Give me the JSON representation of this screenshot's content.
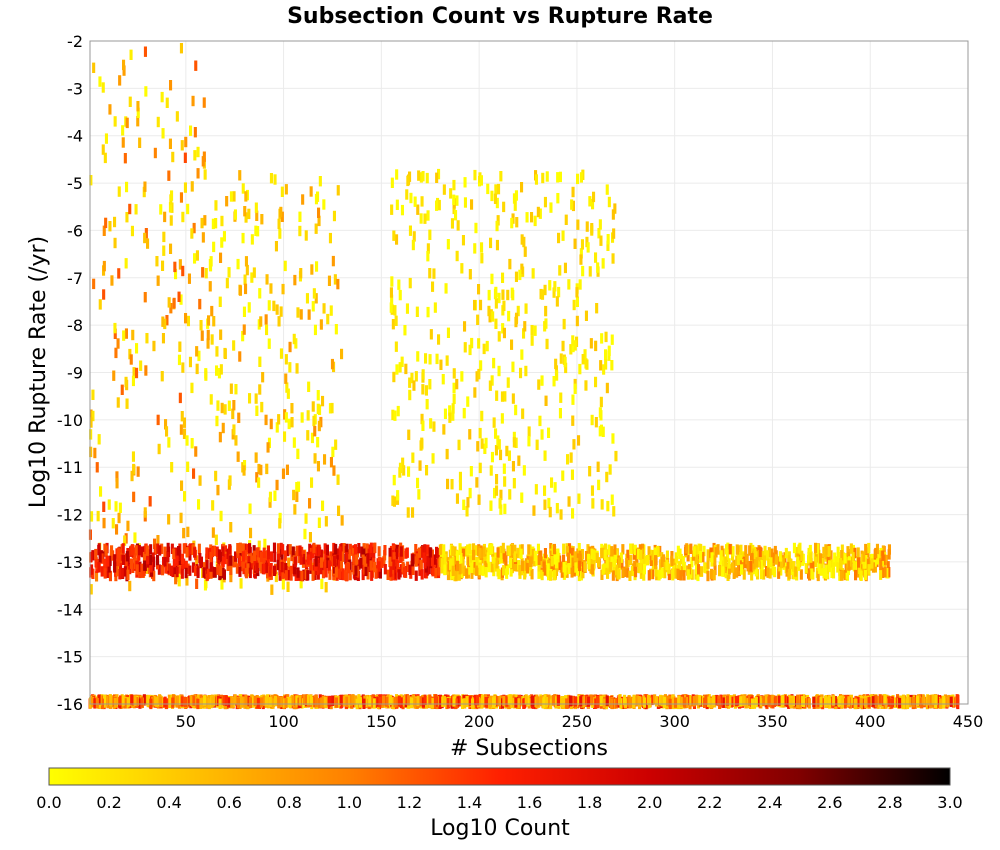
{
  "chart_data": {
    "type": "heatmap",
    "title": "Subsection Count vs Rupture Rate",
    "xlabel": "# Subsections",
    "ylabel": "Log10 Rupture Rate (/yr)",
    "xlim": [
      1,
      450
    ],
    "ylim": [
      -16,
      -2
    ],
    "x_ticks": [
      50,
      100,
      150,
      200,
      250,
      300,
      350,
      400,
      450
    ],
    "y_ticks": [
      -2,
      -3,
      -4,
      -5,
      -6,
      -7,
      -8,
      -9,
      -10,
      -11,
      -12,
      -13,
      -14,
      -15,
      -16
    ],
    "grid": true,
    "bin_size": {
      "x": 1,
      "y": 0.1
    },
    "colorbar": {
      "label": "Log10 Count",
      "range": [
        0.0,
        3.0
      ],
      "ticks": [
        "0.0",
        "0.2",
        "0.4",
        "0.6",
        "0.8",
        "1.0",
        "1.2",
        "1.4",
        "1.6",
        "1.8",
        "2.0",
        "2.2",
        "2.4",
        "2.6",
        "2.8",
        "3.0"
      ],
      "colors": [
        "#ffff00",
        "#ffbf00",
        "#ff8000",
        "#ff2000",
        "#cc0000",
        "#800000",
        "#000000"
      ]
    },
    "regions": [
      {
        "x": [
          1,
          60
        ],
        "y": [
          -13.6,
          -2.1
        ],
        "log10_count": [
          0.0,
          1.3
        ]
      },
      {
        "x": [
          60,
          130
        ],
        "y": [
          -13.6,
          -4.8
        ],
        "log10_count": [
          0.0,
          0.9
        ]
      },
      {
        "x": [
          1,
          180
        ],
        "y": [
          -13.3,
          -12.7
        ],
        "log10_count": [
          1.2,
          2.2
        ]
      },
      {
        "x": [
          180,
          410
        ],
        "y": [
          -13.3,
          -12.7
        ],
        "log10_count": [
          0.0,
          1.1
        ]
      },
      {
        "x": [
          1,
          445
        ],
        "y": [
          -16.0,
          -15.9
        ],
        "log10_count": [
          0.3,
          1.8
        ]
      },
      {
        "x": [
          155,
          270
        ],
        "y": [
          -12.0,
          -4.8
        ],
        "log10_count": [
          0.0,
          0.5
        ]
      }
    ]
  }
}
